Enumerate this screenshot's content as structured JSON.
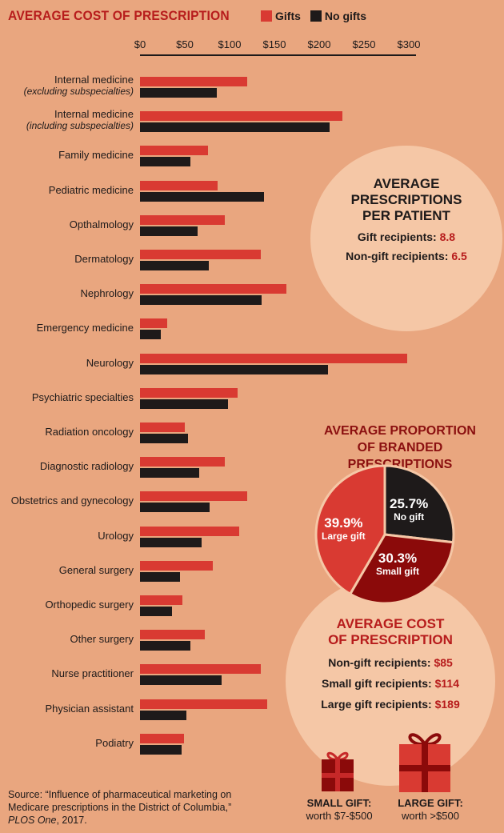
{
  "header": {
    "title": "AVERAGE COST OF PRESCRIPTION",
    "legend_gifts": "Gifts",
    "legend_no_gifts": "No gifts"
  },
  "colors": {
    "gifts": "#d93a32",
    "no_gifts": "#1e1a1a",
    "background": "#e9a67f"
  },
  "chart_data": {
    "type": "bar",
    "orientation": "horizontal",
    "xlim": [
      0,
      300
    ],
    "ticks": [
      "$0",
      "$50",
      "$100",
      "$150",
      "$200",
      "$250",
      "$300"
    ],
    "categories": [
      {
        "name": "Internal medicine",
        "sub": "(excluding subspecialties)"
      },
      {
        "name": "Internal medicine",
        "sub": "(including subspecialties)"
      },
      {
        "name": "Family medicine",
        "sub": ""
      },
      {
        "name": "Pediatric medicine",
        "sub": ""
      },
      {
        "name": "Opthalmology",
        "sub": ""
      },
      {
        "name": "Dermatology",
        "sub": ""
      },
      {
        "name": "Nephrology",
        "sub": ""
      },
      {
        "name": "Emergency medicine",
        "sub": ""
      },
      {
        "name": "Neurology",
        "sub": ""
      },
      {
        "name": "Psychiatric specialties",
        "sub": ""
      },
      {
        "name": "Radiation oncology",
        "sub": ""
      },
      {
        "name": "Diagnostic radiology",
        "sub": ""
      },
      {
        "name": "Obstetrics and gynecology",
        "sub": ""
      },
      {
        "name": "Urology",
        "sub": ""
      },
      {
        "name": "General surgery",
        "sub": ""
      },
      {
        "name": "Orthopedic surgery",
        "sub": ""
      },
      {
        "name": "Other surgery",
        "sub": ""
      },
      {
        "name": "Nurse practitioner",
        "sub": ""
      },
      {
        "name": "Physician assistant",
        "sub": ""
      },
      {
        "name": "Podiatry",
        "sub": ""
      }
    ],
    "series": [
      {
        "name": "Gifts",
        "values": [
          120,
          226,
          76,
          87,
          95,
          135,
          163,
          30,
          298,
          109,
          50,
          95,
          120,
          111,
          81,
          47,
          72,
          135,
          142,
          49
        ]
      },
      {
        "name": "No gifts",
        "values": [
          86,
          212,
          56,
          138,
          64,
          77,
          136,
          23,
          210,
          98,
          54,
          66,
          78,
          69,
          45,
          36,
          56,
          91,
          52,
          46
        ]
      }
    ]
  },
  "per_patient": {
    "title_1": "AVERAGE",
    "title_2": "PRESCRIPTIONS",
    "title_3": "PER PATIENT",
    "gift_label": "Gift recipients:",
    "gift_value": "8.8",
    "nongift_label": "Non-gift recipients:",
    "nongift_value": "6.5"
  },
  "branded": {
    "title_1": "AVERAGE PROPORTION",
    "title_2": "OF BRANDED PRESCRIPTIONS",
    "pie": [
      {
        "label": "No gift",
        "pct": "25.7%",
        "value": 25.7,
        "color": "#1e1a1a"
      },
      {
        "label": "Small gift",
        "pct": "30.3%",
        "value": 30.3,
        "color": "#8b0a0a"
      },
      {
        "label": "Large gift",
        "pct": "39.9%",
        "value": 39.9,
        "color": "#d93a32"
      }
    ]
  },
  "avg_cost": {
    "title_1": "AVERAGE COST",
    "title_2": "OF PRESCRIPTION",
    "rows": [
      {
        "label": "Non-gift recipients:",
        "value": "$85"
      },
      {
        "label": "Small gift recipients:",
        "value": "$114"
      },
      {
        "label": "Large gift recipients:",
        "value": "$189"
      }
    ]
  },
  "gifts": {
    "small_1": "SMALL GIFT:",
    "small_2": "worth $7-$500",
    "large_1": "LARGE GIFT:",
    "large_2": "worth >$500"
  },
  "source": {
    "prefix": "Source: “Influence of pharmaceutical marketing on Medicare prescriptions in the District of Columbia,” ",
    "journal": "PLOS One",
    "suffix": ", 2017."
  }
}
